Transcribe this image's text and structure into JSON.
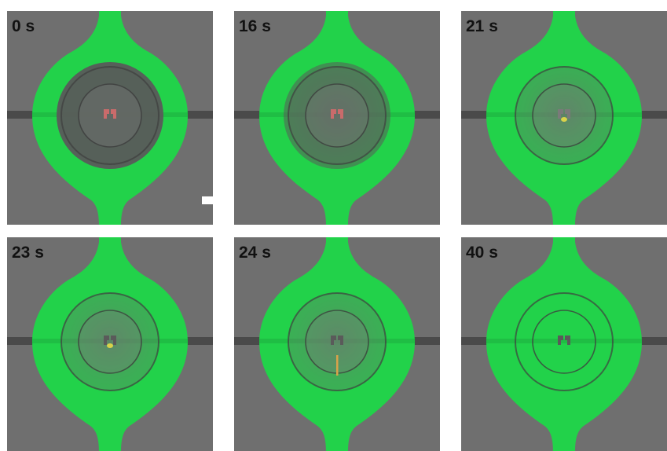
{
  "figure": {
    "panels": [
      {
        "time": "0 s"
      },
      {
        "time": "16 s"
      },
      {
        "time": "21 s"
      },
      {
        "time": "23 s"
      },
      {
        "time": "24 s"
      },
      {
        "time": "40 s"
      }
    ]
  },
  "colors": {
    "background": "#6f6f6f",
    "fluorescence": "#22d24a",
    "channel": "#4a4a4a",
    "cell_trap": "#5a5a5a"
  }
}
